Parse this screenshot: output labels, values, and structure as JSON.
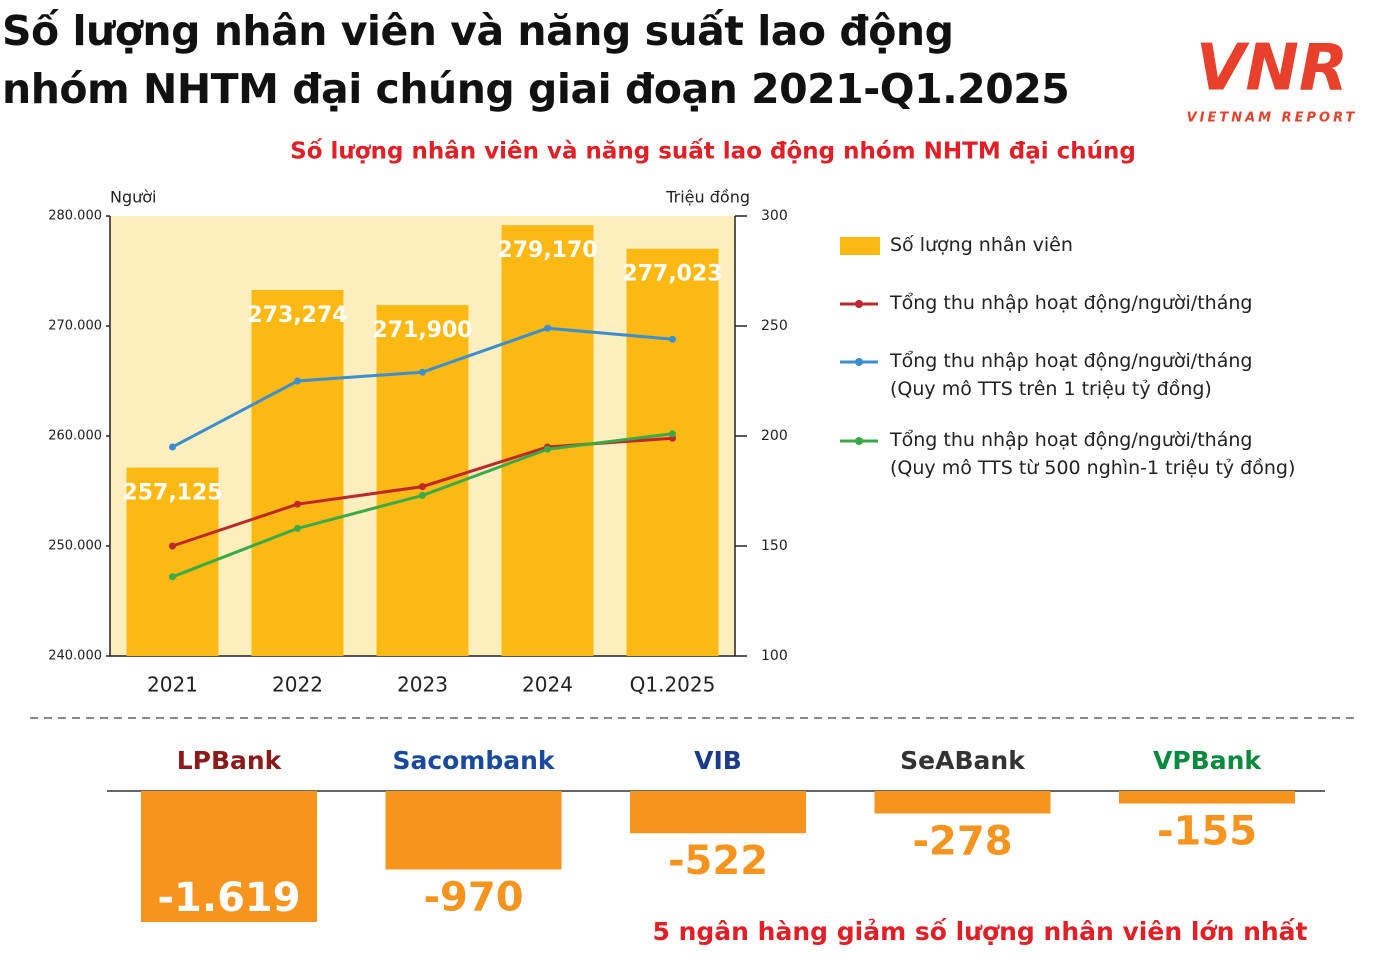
{
  "header": {
    "title": "Số lượng nhân viên và năng suất lao động\nnhóm NHTM đại chúng giai đoạn 2021-Q1.2025",
    "logo": "VNR",
    "logo_subtitle": "VIETNAM REPORT"
  },
  "chart_data": [
    {
      "type": "combo",
      "title": "Số lượng nhân viên và năng suất lao động nhóm NHTM đại chúng",
      "ylabel": "Người",
      "y2label": "Triệu đồng",
      "categories": [
        "2021",
        "2022",
        "2023",
        "2024",
        "Q1.2025"
      ],
      "ylim": [
        240000,
        280000
      ],
      "yticks": [
        {
          "value": 240000,
          "label": "240.000"
        },
        {
          "value": 250000,
          "label": "250.000"
        },
        {
          "value": 260000,
          "label": "260.000"
        },
        {
          "value": 270000,
          "label": "270.000"
        },
        {
          "value": 280000,
          "label": "280.000"
        }
      ],
      "y2lim": [
        100,
        300
      ],
      "y2ticks": [
        100,
        150,
        200,
        250,
        300
      ],
      "plot_background": "#fdeebd",
      "series": [
        {
          "name": "Số lượng nhân viên",
          "type": "bar",
          "color": "#fdb913",
          "values": [
            257125,
            273274,
            271900,
            279170,
            277023
          ],
          "value_labels": [
            "257,125",
            "273,274",
            "271,900",
            "279,170",
            "277,023"
          ]
        },
        {
          "name": "Tổng thu nhập hoạt động/người/tháng",
          "type": "line",
          "axis": "y2",
          "color": "#c0272d",
          "values": [
            150,
            169,
            177,
            195,
            199
          ]
        },
        {
          "name": "Tổng thu nhập hoạt động/người/tháng\n(Quy mô TTS trên 1 triệu tỷ đồng)",
          "type": "line",
          "axis": "y2",
          "color": "#3b8ed0",
          "values": [
            195,
            225,
            229,
            249,
            244
          ]
        },
        {
          "name": "Tổng thu nhập hoạt động/người/tháng\n(Quy mô TTS từ 500 nghìn-1 triệu tỷ đồng)",
          "type": "line",
          "axis": "y2",
          "color": "#3aaa49",
          "values": [
            136,
            158,
            173,
            194,
            201
          ]
        }
      ]
    },
    {
      "type": "bar",
      "title": "5 ngân hàng giảm số lượng nhân viên lớn nhất",
      "categories": [
        "LPBank",
        "Sacombank",
        "VIB",
        "SeABank",
        "VPBank"
      ],
      "values": [
        -1619,
        -970,
        -522,
        -278,
        -155
      ],
      "value_labels": [
        "-1.619",
        "-970",
        "-522",
        "-278",
        "-155"
      ],
      "color": "#f7941d"
    }
  ]
}
